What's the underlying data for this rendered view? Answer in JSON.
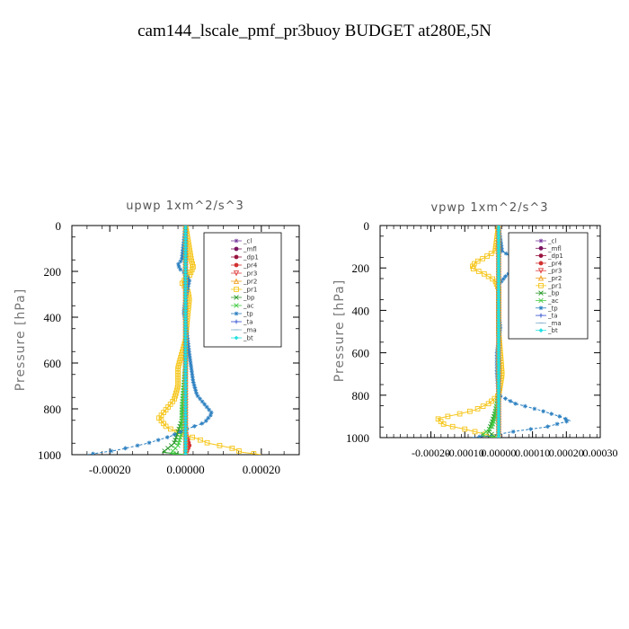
{
  "title": "cam144_lscale_pmf_pr3buoy  BUDGET at280E,5N",
  "chart_data": [
    {
      "type": "line",
      "panel_title": "upwp   1xm^2/s^3",
      "ylabel": "Pressure [hPa]",
      "ylim": [
        1000,
        0
      ],
      "xlim": [
        -0.0003,
        0.0003
      ],
      "xticks": [
        -0.0002,
        0,
        0.0002
      ],
      "xtick_labels": [
        "-0.00020",
        "0.00000",
        "0.00020"
      ],
      "yticks": [
        0,
        200,
        400,
        600,
        800,
        1000
      ],
      "ytick_labels": [
        "0",
        "200",
        "400",
        "600",
        "800",
        "1000"
      ],
      "legend_position": "top-right",
      "series": [
        {
          "name": "_cl",
          "color": "#7b3fa0",
          "marker": "star",
          "points": [
            [
              0,
              0
            ],
            [
              0,
              200
            ],
            [
              0,
              400
            ],
            [
              0,
              600
            ],
            [
              0,
              800
            ],
            [
              0,
              1000
            ]
          ]
        },
        {
          "name": "_mfl",
          "color": "#7b1560",
          "marker": "circle",
          "points": [
            [
              0,
              0
            ],
            [
              0,
              200
            ],
            [
              0,
              400
            ],
            [
              0,
              600
            ],
            [
              0,
              800
            ],
            [
              0,
              1000
            ]
          ]
        },
        {
          "name": "_dp1",
          "color": "#9a1440",
          "marker": "circle",
          "points": [
            [
              0,
              0
            ],
            [
              0,
              200
            ],
            [
              0,
              400
            ],
            [
              0,
              600
            ],
            [
              0,
              700
            ],
            [
              0,
              800
            ],
            [
              0,
              900
            ],
            [
              0,
              1000
            ]
          ]
        },
        {
          "name": "_pr4",
          "color": "#d23030",
          "marker": "circle",
          "points": [
            [
              0,
              0
            ],
            [
              0,
              500
            ],
            [
              0,
              900
            ],
            [
              1e-05,
              960
            ],
            [
              0,
              1000
            ]
          ]
        },
        {
          "name": "_pr3",
          "color": "#e04040",
          "marker": "tri-down",
          "points": [
            [
              0,
              0
            ],
            [
              0,
              500
            ],
            [
              0,
              900
            ],
            [
              5e-06,
              980
            ],
            [
              0,
              1000
            ]
          ]
        },
        {
          "name": "_pr2",
          "color": "#f0a020",
          "marker": "tri-up",
          "points": [
            [
              0,
              0
            ],
            [
              0,
              500
            ],
            [
              0,
              900
            ],
            [
              0,
              1000
            ]
          ]
        },
        {
          "name": "_pr1",
          "color": "#f5c518",
          "marker": "square",
          "points": [
            [
              0,
              0
            ],
            [
              1.5e-05,
              150
            ],
            [
              2e-05,
              180
            ],
            [
              1e-05,
              220
            ],
            [
              -1e-05,
              250
            ],
            [
              5e-06,
              280
            ],
            [
              1e-05,
              320
            ],
            [
              5e-06,
              400
            ],
            [
              0,
              500
            ],
            [
              -1e-05,
              560
            ],
            [
              -2e-05,
              620
            ],
            [
              -2e-05,
              700
            ],
            [
              -3e-05,
              760
            ],
            [
              -5e-05,
              800
            ],
            [
              -7e-05,
              840
            ],
            [
              -5e-05,
              880
            ],
            [
              -1e-05,
              910
            ],
            [
              3e-05,
              930
            ],
            [
              6e-05,
              950
            ],
            [
              0.00012,
              970
            ],
            [
              0.00015,
              990
            ],
            [
              0.0002,
              1000
            ]
          ]
        },
        {
          "name": "_bp",
          "color": "#2a9a2a",
          "marker": "x",
          "points": [
            [
              0,
              0
            ],
            [
              0,
              600
            ],
            [
              -5e-06,
              750
            ],
            [
              -1e-05,
              850
            ],
            [
              -2e-05,
              900
            ],
            [
              -3e-05,
              950
            ],
            [
              -6e-05,
              990
            ],
            [
              0,
              1000
            ]
          ]
        },
        {
          "name": "_ac",
          "color": "#44cc44",
          "marker": "x",
          "points": [
            [
              0,
              0
            ],
            [
              0,
              600
            ],
            [
              -1e-05,
              800
            ],
            [
              -1e-05,
              900
            ],
            [
              -2e-05,
              960
            ],
            [
              -4e-05,
              995
            ],
            [
              0,
              1000
            ]
          ]
        },
        {
          "name": "_tp",
          "color": "#2a7fc0",
          "marker": "star",
          "points": [
            [
              0,
              0
            ],
            [
              -1e-05,
              150
            ],
            [
              -2e-05,
              170
            ],
            [
              -1.5e-05,
              190
            ],
            [
              0,
              210
            ],
            [
              1e-05,
              240
            ],
            [
              5e-06,
              280
            ],
            [
              0,
              320
            ],
            [
              -5e-06,
              380
            ],
            [
              0,
              420
            ],
            [
              1e-05,
              560
            ],
            [
              1.5e-05,
              620
            ],
            [
              2e-05,
              680
            ],
            [
              3e-05,
              740
            ],
            [
              5e-05,
              780
            ],
            [
              7e-05,
              820
            ],
            [
              5e-05,
              860
            ],
            [
              0,
              890
            ],
            [
              -4e-05,
              920
            ],
            [
              -0.0001,
              950
            ],
            [
              -0.00018,
              980
            ],
            [
              -0.00026,
              1000
            ]
          ]
        },
        {
          "name": "_ta",
          "color": "#3050d0",
          "marker": "plus",
          "points": [
            [
              0,
              0
            ],
            [
              0,
              400
            ],
            [
              0,
              800
            ],
            [
              0,
              1000
            ]
          ]
        },
        {
          "name": "_ma",
          "color": "#80b0d0",
          "marker": "dash",
          "points": [
            [
              0,
              0
            ],
            [
              0,
              500
            ],
            [
              0,
              1000
            ]
          ]
        },
        {
          "name": "_bt",
          "color": "#20e0e0",
          "marker": "diamond",
          "points": [
            [
              0,
              0
            ],
            [
              0,
              500
            ],
            [
              0,
              1000
            ]
          ]
        }
      ]
    },
    {
      "type": "line",
      "panel_title": "vpwp   1xm^2/s^3",
      "ylabel": "Pressure [hPa]",
      "ylim": [
        1000,
        0
      ],
      "xlim": [
        -0.00035,
        0.0003
      ],
      "xticks": [
        -0.0002,
        -0.0001,
        0,
        0.0001,
        0.0002,
        0.0003
      ],
      "xtick_labels": [
        "-0.00020",
        "-0.00010",
        "0.00000",
        "0.00010",
        "0.00020",
        "0.00030"
      ],
      "yticks": [
        0,
        200,
        400,
        600,
        800,
        1000
      ],
      "ytick_labels": [
        "0",
        "200",
        "400",
        "600",
        "800",
        "1000"
      ],
      "legend_position": "top-right",
      "series": [
        {
          "name": "_cl",
          "color": "#7b3fa0",
          "marker": "star",
          "points": [
            [
              0,
              0
            ],
            [
              0,
              200
            ],
            [
              0,
              400
            ],
            [
              0,
              600
            ],
            [
              0,
              800
            ],
            [
              0,
              1000
            ]
          ]
        },
        {
          "name": "_mfl",
          "color": "#7b1560",
          "marker": "circle",
          "points": [
            [
              0,
              0
            ],
            [
              0,
              200
            ],
            [
              0,
              400
            ],
            [
              0,
              600
            ],
            [
              0,
              800
            ],
            [
              0,
              1000
            ]
          ]
        },
        {
          "name": "_dp1",
          "color": "#9a1440",
          "marker": "circle",
          "points": [
            [
              0,
              0
            ],
            [
              0,
              200
            ],
            [
              0,
              400
            ],
            [
              0,
              600
            ],
            [
              0,
              700
            ],
            [
              0,
              800
            ],
            [
              0,
              900
            ],
            [
              0,
              1000
            ]
          ]
        },
        {
          "name": "_pr4",
          "color": "#d23030",
          "marker": "circle",
          "points": [
            [
              0,
              0
            ],
            [
              0,
              500
            ],
            [
              0,
              900
            ],
            [
              0,
              1000
            ]
          ]
        },
        {
          "name": "_pr3",
          "color": "#e04040",
          "marker": "tri-down",
          "points": [
            [
              0,
              0
            ],
            [
              0,
              500
            ],
            [
              0,
              900
            ],
            [
              0,
              1000
            ]
          ]
        },
        {
          "name": "_pr2",
          "color": "#f0a020",
          "marker": "tri-up",
          "points": [
            [
              0,
              0
            ],
            [
              0,
              500
            ],
            [
              0,
              900
            ],
            [
              0,
              1000
            ]
          ]
        },
        {
          "name": "_pr1",
          "color": "#f5c518",
          "marker": "square",
          "points": [
            [
              0,
              0
            ],
            [
              -1e-05,
              120
            ],
            [
              -4e-05,
              150
            ],
            [
              -7e-05,
              175
            ],
            [
              -8e-05,
              200
            ],
            [
              -4e-05,
              230
            ],
            [
              -1e-05,
              260
            ],
            [
              0,
              300
            ],
            [
              0,
              500
            ],
            [
              5e-06,
              600
            ],
            [
              1e-05,
              700
            ],
            [
              0,
              800
            ],
            [
              -3e-05,
              840
            ],
            [
              -7e-05,
              870
            ],
            [
              -0.00012,
              890
            ],
            [
              -0.00018,
              910
            ],
            [
              -0.00016,
              940
            ],
            [
              -0.0001,
              960
            ],
            [
              -5e-05,
              980
            ],
            [
              0,
              1000
            ]
          ]
        },
        {
          "name": "_bp",
          "color": "#2a9a2a",
          "marker": "x",
          "points": [
            [
              0,
              0
            ],
            [
              0,
              800
            ],
            [
              -1e-05,
              880
            ],
            [
              -2e-05,
              930
            ],
            [
              -3e-05,
              970
            ],
            [
              -1e-05,
              1000
            ]
          ]
        },
        {
          "name": "_ac",
          "color": "#44cc44",
          "marker": "x",
          "points": [
            [
              0,
              0
            ],
            [
              0,
              800
            ],
            [
              -1e-05,
              900
            ],
            [
              -2e-05,
              950
            ],
            [
              -5e-05,
              990
            ],
            [
              0,
              1000
            ]
          ]
        },
        {
          "name": "_tp",
          "color": "#2a7fc0",
          "marker": "star",
          "points": [
            [
              0,
              0
            ],
            [
              1e-05,
              120
            ],
            [
              4e-05,
              150
            ],
            [
              6e-05,
              175
            ],
            [
              5e-05,
              200
            ],
            [
              2e-05,
              240
            ],
            [
              0,
              280
            ],
            [
              0,
              420
            ],
            [
              5e-06,
              480
            ],
            [
              0,
              540
            ],
            [
              -5e-06,
              600
            ],
            [
              -5e-06,
              700
            ],
            [
              0,
              800
            ],
            [
              5e-05,
              840
            ],
            [
              0.00012,
              870
            ],
            [
              0.00018,
              900
            ],
            [
              0.00021,
              920
            ],
            [
              0.00014,
              950
            ],
            [
              5e-05,
              970
            ],
            [
              -2e-05,
              990
            ],
            [
              -8e-05,
              1000
            ]
          ]
        },
        {
          "name": "_ta",
          "color": "#3050d0",
          "marker": "plus",
          "points": [
            [
              0,
              0
            ],
            [
              0,
              400
            ],
            [
              0,
              800
            ],
            [
              0,
              1000
            ]
          ]
        },
        {
          "name": "_ma",
          "color": "#80b0d0",
          "marker": "dash",
          "points": [
            [
              0,
              0
            ],
            [
              0,
              500
            ],
            [
              0,
              1000
            ]
          ]
        },
        {
          "name": "_bt",
          "color": "#20e0e0",
          "marker": "diamond",
          "points": [
            [
              0,
              0
            ],
            [
              0,
              500
            ],
            [
              0,
              1000
            ]
          ]
        }
      ]
    }
  ]
}
